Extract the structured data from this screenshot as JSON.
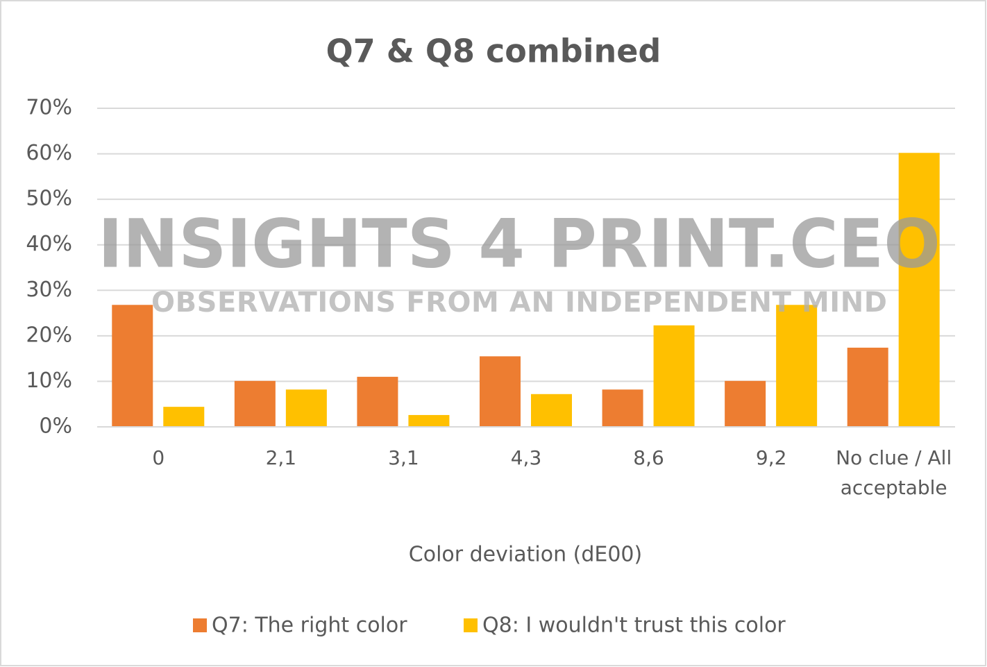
{
  "chart_data": {
    "type": "bar",
    "title": "Q7 & Q8 combined",
    "watermark": "INSIGHTS 4 PRINT.CEO",
    "watermark_subtitle": "OBSERVATIONS FROM AN INDEPENDENT MIND",
    "x_label": "Color deviation (dE00)",
    "categories": [
      "0",
      "2,1",
      "3,1",
      "4,3",
      "8,6",
      "9,2",
      "No clue / All acceptable"
    ],
    "series": [
      {
        "name": "Q7: The right color",
        "color": "#ed7d31",
        "values": [
          26.8,
          10.1,
          11.0,
          15.5,
          8.2,
          10.1,
          17.4
        ]
      },
      {
        "name": "Q8: I wouldn't trust this color",
        "color": "#ffc000",
        "values": [
          4.4,
          8.2,
          2.6,
          7.2,
          22.3,
          26.8,
          60.2
        ]
      }
    ],
    "ylim": [
      0,
      70
    ],
    "yticks": [
      {
        "value": 0,
        "label": "0%"
      },
      {
        "value": 10,
        "label": "10%"
      },
      {
        "value": 20,
        "label": "20%"
      },
      {
        "value": 30,
        "label": "30%"
      },
      {
        "value": 40,
        "label": "40%"
      },
      {
        "value": 50,
        "label": "50%"
      },
      {
        "value": 60,
        "label": "60%"
      },
      {
        "value": 70,
        "label": "70%"
      }
    ],
    "grid": true,
    "legend": "bottom"
  }
}
